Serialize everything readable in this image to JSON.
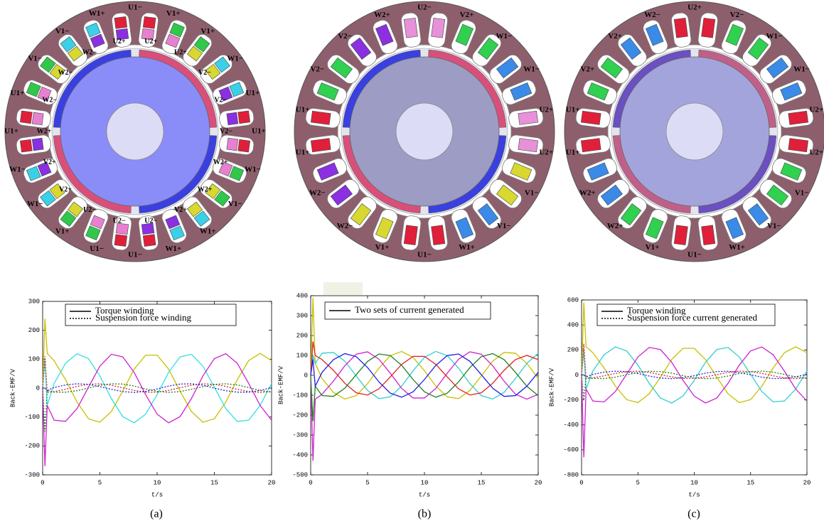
{
  "motors": [
    {
      "outer_labels": [
        "U1−",
        "V1+",
        "V1+",
        "W1−",
        "U1+",
        "U1+",
        "W1−",
        "V1−",
        "W1+",
        "W1+",
        "U1−",
        "U1−",
        "V1+",
        "W1−",
        "W1−",
        "U1+",
        "U1+",
        "V1−",
        "V1−",
        "W1+"
      ],
      "inner_labels": [
        "U2+",
        "U2+",
        "V2−",
        "V2−",
        "V2−",
        "W2+",
        "W2+",
        "V2+",
        "U2−",
        "U2−",
        "U2−",
        "V2+",
        "V2+",
        "W2+",
        "W2−",
        "W2−",
        "W2−",
        "U2+"
      ],
      "slot_colors": [
        "#e0203a",
        "#2fc84a",
        "#2fc84a",
        "#3ad0e8",
        "#3ad0e8",
        "#e0203a",
        "#e0203a",
        "#2fc84a",
        "#2fc84a",
        "#3ad0e8",
        "#3ad0e8",
        "#e0203a",
        "#e0203a",
        "#2fc84a",
        "#2fc84a",
        "#3ad0e8",
        "#3ad0e8",
        "#e0203a",
        "#e0203a",
        "#2fc84a",
        "#2fc84a",
        "#3ad0e8",
        "#3ad0e8",
        "#e0203a"
      ],
      "inner_slot_colors": [
        "#e880d0",
        "#e880d0",
        "#d8d830",
        "#d8d830",
        "#8a30e0",
        "#8a30e0",
        "#e880d0",
        "#e880d0",
        "#d8d830",
        "#d8d830",
        "#8a30e0",
        "#8a30e0",
        "#e880d0",
        "#e880d0",
        "#d8d830",
        "#d8d830",
        "#8a30e0",
        "#8a30e0",
        "#e880d0",
        "#e880d0",
        "#d8d830",
        "#d8d830",
        "#8a30e0",
        "#8a30e0"
      ],
      "rotor_color": "#8a8cf8",
      "magnet_colors": [
        "#d8507a",
        "#3a40e0",
        "#d8507a",
        "#3a40e0"
      ]
    },
    {
      "outer_labels": [
        "U2−",
        "V2+",
        "W1−",
        "W1−",
        "U2+",
        "U2+",
        "V1−",
        "V1−",
        "W1+",
        "U1−",
        "V1+",
        "W2−",
        "W2−",
        "U1+",
        "U1+",
        "V2−",
        "V2−",
        "W2+"
      ],
      "slot_colors": [
        "#e890d8",
        "#30d050",
        "#30d050",
        "#3a8ae8",
        "#3a8ae8",
        "#e890d8",
        "#e890d8",
        "#d8d830",
        "#d8d830",
        "#3a8ae8",
        "#3a8ae8",
        "#e0203a",
        "#e0203a",
        "#d8d830",
        "#d8d830",
        "#8a30e0",
        "#8a30e0",
        "#e0203a",
        "#e0203a",
        "#30d050",
        "#30d050",
        "#8a30e0",
        "#8a30e0",
        "#e890d8"
      ],
      "rotor_color": "#9c9cc4",
      "magnet_colors": [
        "#d8507a",
        "#3a40e0",
        "#d8507a",
        "#3a40e0"
      ]
    },
    {
      "outer_labels": [
        "U2+",
        "V2−",
        "W1−",
        "W1−",
        "U2+",
        "U2+",
        "V1−",
        "V1−",
        "W1+",
        "U1−",
        "V1+",
        "W2+",
        "W2+",
        "U1+",
        "U1+",
        "V2+",
        "V2+",
        "W2−"
      ],
      "slot_colors": [
        "#e0203a",
        "#30d050",
        "#30d050",
        "#3a8ae8",
        "#3a8ae8",
        "#e0203a",
        "#e0203a",
        "#30d050",
        "#30d050",
        "#3a8ae8",
        "#3a8ae8",
        "#e0203a",
        "#e0203a",
        "#30d050",
        "#30d050",
        "#3a8ae8",
        "#3a8ae8",
        "#e0203a",
        "#e0203a",
        "#30d050",
        "#30d050",
        "#3a8ae8",
        "#3a8ae8",
        "#e0203a"
      ],
      "rotor_color": "#a4a4dc",
      "magnet_colors": [
        "#c06088",
        "#6a50c0",
        "#c06088",
        "#6a50c0"
      ]
    }
  ],
  "chart_data": [
    {
      "type": "line",
      "x_label": "t/s",
      "y_label": "Back-EMF/V",
      "x": [
        0,
        0.2,
        0.4,
        1,
        2,
        3,
        4,
        5,
        6,
        7,
        8,
        9,
        10,
        11,
        12,
        13,
        14,
        15,
        16,
        17,
        18,
        19,
        20
      ],
      "xlim": [
        0,
        20
      ],
      "xticks": [
        0,
        5,
        10,
        15,
        20
      ],
      "ylim": [
        -300,
        300
      ],
      "yticks": [
        -300,
        -200,
        -100,
        0,
        100,
        200,
        300
      ],
      "legend": [
        {
          "label": "Torque winding",
          "dash": "solid"
        },
        {
          "label": "Suspension force winding",
          "dash": "dotted"
        }
      ],
      "series": [
        {
          "color": "#c8c000",
          "dash": "solid",
          "values": [
            0,
            240,
            120,
            95,
            29,
            -48,
            -106,
            -118,
            -81,
            -10,
            66,
            114,
            114,
            66,
            -10,
            -81,
            -118,
            -106,
            -48,
            29,
            95,
            120,
            95
          ]
        },
        {
          "color": "#30e0e0",
          "dash": "solid",
          "values": [
            0,
            100,
            -60,
            16,
            86,
            119,
            102,
            42,
            -36,
            -99,
            -120,
            -90,
            -23,
            54,
            108,
            117,
            76,
            3,
            -71,
            -115,
            -111,
            -60,
            16
          ]
        },
        {
          "color": "#d020d0",
          "dash": "solid",
          "values": [
            0,
            -270,
            -60,
            -111,
            -115,
            -71,
            3,
            76,
            117,
            108,
            54,
            -23,
            -90,
            -120,
            -99,
            -36,
            42,
            102,
            119,
            86,
            16,
            -60,
            -111
          ]
        },
        {
          "color": "#e02020",
          "dash": "dotted",
          "values": [
            0,
            110,
            -15,
            -12,
            -4,
            6,
            13,
            15,
            10,
            1,
            -8,
            -14,
            -14,
            -8,
            1,
            10,
            15,
            13,
            6,
            -4,
            -12,
            -15,
            -12
          ]
        },
        {
          "color": "#2020e0",
          "dash": "dotted",
          "values": [
            0,
            0,
            -8,
            2,
            11,
            15,
            13,
            5,
            -4,
            -12,
            -15,
            -11,
            -3,
            7,
            14,
            15,
            10,
            0,
            -9,
            -14,
            -14,
            -8,
            2
          ]
        },
        {
          "color": "#208020",
          "dash": "dotted",
          "values": [
            0,
            -150,
            -8,
            -14,
            -14,
            -9,
            0,
            10,
            15,
            14,
            7,
            -3,
            -11,
            -15,
            -12,
            -4,
            5,
            13,
            15,
            11,
            2,
            -8,
            -14
          ]
        }
      ]
    },
    {
      "type": "line",
      "x_label": "t/s",
      "y_label": "Back-EMF/V",
      "x": [
        0,
        0.2,
        0.4,
        1,
        2,
        3,
        4,
        5,
        6,
        7,
        8,
        9,
        10,
        11,
        12,
        13,
        14,
        15,
        16,
        17,
        18,
        19,
        20
      ],
      "xlim": [
        0,
        20
      ],
      "xticks": [
        0,
        5,
        10,
        15,
        20
      ],
      "ylim": [
        -500,
        400
      ],
      "yticks": [
        -500,
        -400,
        -300,
        -200,
        -100,
        0,
        100,
        200,
        300,
        400
      ],
      "legend": [
        {
          "label": "Two sets of current generated",
          "dash": "solid"
        }
      ],
      "series": [
        {
          "color": "#c8c000",
          "dash": "solid",
          "values": [
            0,
            390,
            60,
            -16,
            -86,
            -119,
            -102,
            -42,
            36,
            99,
            120,
            90,
            23,
            -54,
            -108,
            -117,
            -76,
            -3,
            71,
            115,
            111,
            60,
            -16
          ]
        },
        {
          "color": "#30d0d0",
          "dash": "solid",
          "values": [
            0,
            100,
            60,
            111,
            115,
            71,
            -3,
            -76,
            -117,
            -108,
            -54,
            23,
            90,
            120,
            99,
            36,
            -42,
            -102,
            -119,
            -86,
            -16,
            60,
            111
          ]
        },
        {
          "color": "#d020d0",
          "dash": "solid",
          "values": [
            0,
            -430,
            -120,
            -95,
            -29,
            48,
            106,
            118,
            81,
            10,
            -66,
            -114,
            -114,
            -66,
            10,
            81,
            118,
            106,
            48,
            -29,
            -95,
            -120,
            -95
          ]
        },
        {
          "color": "#e02020",
          "dash": "solid",
          "values": [
            0,
            170,
            100,
            79,
            25,
            -40,
            -88,
            -99,
            -68,
            -8,
            55,
            95,
            95,
            55,
            -8,
            -68,
            -99,
            -88,
            -40,
            25,
            79,
            100,
            79
          ]
        },
        {
          "color": "#208020",
          "dash": "solid",
          "values": [
            0,
            -230,
            -55,
            -102,
            -106,
            -65,
            3,
            70,
            107,
            99,
            50,
            -21,
            -83,
            -110,
            -90,
            -33,
            39,
            94,
            109,
            79,
            15,
            -55,
            -102
          ]
        },
        {
          "color": "#2020e0",
          "dash": "solid",
          "values": [
            0,
            80,
            -55,
            15,
            79,
            109,
            94,
            39,
            -33,
            -90,
            -110,
            -83,
            -21,
            50,
            99,
            107,
            70,
            3,
            -65,
            -106,
            -102,
            -55,
            15
          ]
        }
      ]
    },
    {
      "type": "line",
      "x_label": "t/s",
      "y_label": "Back-EMF/V",
      "x": [
        0,
        0.2,
        0.4,
        1,
        2,
        3,
        4,
        5,
        6,
        7,
        8,
        9,
        10,
        11,
        12,
        13,
        14,
        15,
        16,
        17,
        18,
        19,
        20
      ],
      "xlim": [
        0,
        20
      ],
      "xticks": [
        0,
        5,
        10,
        15,
        20
      ],
      "ylim": [
        -800,
        600
      ],
      "yticks": [
        -800,
        -600,
        -400,
        -200,
        0,
        200,
        400,
        600
      ],
      "legend": [
        {
          "label": "Torque winding",
          "dash": "solid"
        },
        {
          "label": "Suspension force current generated",
          "dash": "dotted"
        }
      ],
      "series": [
        {
          "color": "#c8c000",
          "dash": "solid",
          "values": [
            0,
            580,
            225,
            178,
            55,
            -90,
            -198,
            -222,
            -152,
            -18,
            123,
            213,
            213,
            123,
            -18,
            -152,
            -222,
            -198,
            -90,
            55,
            178,
            225,
            178
          ]
        },
        {
          "color": "#30d0d0",
          "dash": "solid",
          "values": [
            0,
            200,
            -113,
            31,
            161,
            224,
            192,
            79,
            -67,
            -185,
            -225,
            -169,
            -43,
            101,
            203,
            220,
            143,
            6,
            -133,
            -216,
            -209,
            -113,
            31
          ]
        },
        {
          "color": "#d020d0",
          "dash": "solid",
          "values": [
            0,
            -660,
            -113,
            -209,
            -216,
            -133,
            6,
            143,
            220,
            203,
            101,
            -43,
            -169,
            -225,
            -185,
            -67,
            79,
            192,
            224,
            161,
            31,
            -113,
            -209
          ]
        },
        {
          "color": "#e02020",
          "dash": "dotted",
          "values": [
            0,
            250,
            -30,
            -24,
            -7,
            12,
            26,
            30,
            20,
            2,
            -16,
            -28,
            -28,
            -16,
            2,
            20,
            30,
            26,
            12,
            -7,
            -24,
            -30,
            -24
          ]
        },
        {
          "color": "#2020e0",
          "dash": "dotted",
          "values": [
            0,
            0,
            -15,
            4,
            22,
            30,
            26,
            11,
            -9,
            -25,
            -30,
            -23,
            -6,
            14,
            27,
            29,
            19,
            1,
            -18,
            -29,
            -28,
            -15,
            4
          ]
        },
        {
          "color": "#208020",
          "dash": "dotted",
          "values": [
            0,
            -200,
            -15,
            -28,
            -29,
            -18,
            1,
            19,
            29,
            27,
            14,
            -6,
            -23,
            -30,
            -25,
            -9,
            11,
            26,
            30,
            22,
            4,
            -15,
            -28
          ]
        }
      ]
    }
  ],
  "captions": [
    "(a)",
    "(b)",
    "(c)"
  ]
}
